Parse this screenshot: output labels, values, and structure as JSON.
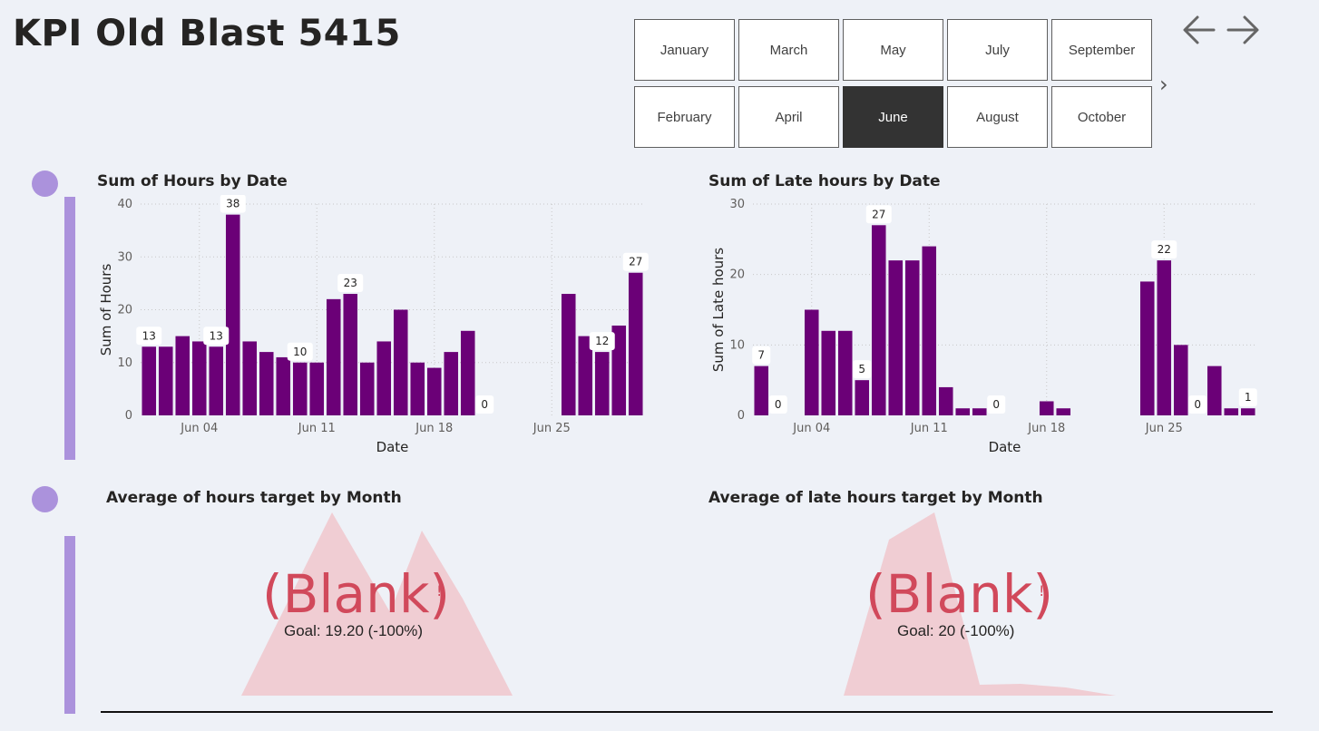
{
  "page": {
    "title": "KPI Old Blast 5415"
  },
  "slicer": {
    "months": [
      "January",
      "February",
      "March",
      "April",
      "May",
      "June",
      "July",
      "August",
      "September",
      "October"
    ],
    "selected": "June",
    "more_icon": "chevron-right-icon"
  },
  "nav": {
    "back_icon": "arrow-left-icon",
    "forward_icon": "arrow-right-icon"
  },
  "colors": {
    "bar": "#6b0077",
    "accent": "#ab92dc",
    "kpi_bad": "#d1495b",
    "kpi_fill": "#f0cdd3"
  },
  "chart_data": [
    {
      "type": "bar",
      "title": "Sum of Hours by Date",
      "xlabel": "Date",
      "ylabel": "Sum of Hours",
      "ylim": [
        0,
        40
      ],
      "yticks": [
        0,
        10,
        20,
        30,
        40
      ],
      "x_ticks": [
        {
          "label": "Jun 04",
          "x": 4
        },
        {
          "label": "Jun 11",
          "x": 11
        },
        {
          "label": "Jun 18",
          "x": 18
        },
        {
          "label": "Jun 25",
          "x": 25
        }
      ],
      "x_range": [
        0.5,
        30.5
      ],
      "grid": true,
      "bars": [
        {
          "x": 1,
          "value": 13,
          "label": "13"
        },
        {
          "x": 2,
          "value": 13
        },
        {
          "x": 3,
          "value": 15
        },
        {
          "x": 4,
          "value": 14
        },
        {
          "x": 5,
          "value": 13,
          "label": "13"
        },
        {
          "x": 6,
          "value": 38,
          "label": "38"
        },
        {
          "x": 7,
          "value": 14
        },
        {
          "x": 8,
          "value": 12
        },
        {
          "x": 9,
          "value": 11
        },
        {
          "x": 10,
          "value": 10,
          "label": "10"
        },
        {
          "x": 11,
          "value": 10
        },
        {
          "x": 12,
          "value": 22
        },
        {
          "x": 13,
          "value": 23,
          "label": "23"
        },
        {
          "x": 14,
          "value": 10
        },
        {
          "x": 15,
          "value": 14
        },
        {
          "x": 16,
          "value": 20
        },
        {
          "x": 17,
          "value": 10
        },
        {
          "x": 18,
          "value": 9
        },
        {
          "x": 19,
          "value": 12
        },
        {
          "x": 20,
          "value": 16
        },
        {
          "x": 21,
          "value": 0,
          "label": "0"
        },
        {
          "x": 26,
          "value": 23
        },
        {
          "x": 27,
          "value": 15
        },
        {
          "x": 28,
          "value": 12,
          "label": "12"
        },
        {
          "x": 29,
          "value": 17
        },
        {
          "x": 30,
          "value": 27,
          "label": "27"
        }
      ]
    },
    {
      "type": "bar",
      "title": "Sum of Late hours by Date",
      "xlabel": "Date",
      "ylabel": "Sum of Late hours",
      "ylim": [
        0,
        30
      ],
      "yticks": [
        0,
        10,
        20,
        30
      ],
      "x_ticks": [
        {
          "label": "Jun 04",
          "x": 4
        },
        {
          "label": "Jun 11",
          "x": 11
        },
        {
          "label": "Jun 18",
          "x": 18
        },
        {
          "label": "Jun 25",
          "x": 25
        }
      ],
      "x_range": [
        0.5,
        30.5
      ],
      "grid": true,
      "bars": [
        {
          "x": 1,
          "value": 7,
          "label": "7"
        },
        {
          "x": 2,
          "value": 0,
          "label": "0"
        },
        {
          "x": 4,
          "value": 15
        },
        {
          "x": 5,
          "value": 12
        },
        {
          "x": 6,
          "value": 12
        },
        {
          "x": 7,
          "value": 5,
          "label": "5"
        },
        {
          "x": 8,
          "value": 27,
          "label": "27"
        },
        {
          "x": 9,
          "value": 22
        },
        {
          "x": 10,
          "value": 22
        },
        {
          "x": 11,
          "value": 24
        },
        {
          "x": 12,
          "value": 4
        },
        {
          "x": 13,
          "value": 1
        },
        {
          "x": 14,
          "value": 1
        },
        {
          "x": 15,
          "value": 0,
          "label": "0"
        },
        {
          "x": 18,
          "value": 2
        },
        {
          "x": 19,
          "value": 1
        },
        {
          "x": 24,
          "value": 19
        },
        {
          "x": 25,
          "value": 22,
          "label": "22"
        },
        {
          "x": 26,
          "value": 10
        },
        {
          "x": 27,
          "value": 0,
          "label": "0"
        },
        {
          "x": 28,
          "value": 7
        },
        {
          "x": 29,
          "value": 1
        },
        {
          "x": 30,
          "value": 1,
          "label": "1"
        }
      ]
    }
  ],
  "kpis": [
    {
      "title": "Average of hours target by Month",
      "value": "(Blank)",
      "alert": "!",
      "goal": "Goal: 19.20 (-100%)"
    },
    {
      "title": "Average of late hours target by Month",
      "value": "(Blank)",
      "alert": "!",
      "goal": "Goal: 20 (-100%)"
    }
  ]
}
